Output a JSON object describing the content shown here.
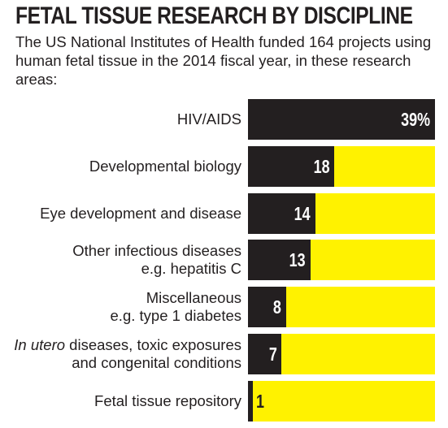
{
  "title": "FETAL TISSUE RESEARCH BY DISCIPLINE",
  "subtitle": "The US National Institutes of Health funded 164 projects using human fetal tissue in the 2014 fiscal year, in these research areas:",
  "colors": {
    "bar": "#231f20",
    "track": "#fff200",
    "text": "#231f20"
  },
  "chart_data": {
    "type": "bar",
    "orientation": "horizontal",
    "categories": [
      "HIV/AIDS",
      "Developmental biology",
      "Eye development and disease",
      "Other infectious diseases e.g. hepatitis C",
      "Miscellaneous e.g. type 1 diabetes",
      "In utero diseases, toxic exposures and congenital conditions",
      "Fetal tissue repository"
    ],
    "values": [
      39,
      18,
      14,
      13,
      8,
      7,
      1
    ],
    "value_labels": [
      "39%",
      "18",
      "14",
      "13",
      "8",
      "7",
      "1"
    ],
    "unit": "%",
    "xlim": [
      0,
      39
    ],
    "grid": false
  },
  "rows": [
    {
      "line1_em": "",
      "line1": "HIV/AIDS",
      "line2": ""
    },
    {
      "line1_em": "",
      "line1": "Developmental biology",
      "line2": ""
    },
    {
      "line1_em": "",
      "line1": "Eye development and disease",
      "line2": ""
    },
    {
      "line1_em": "",
      "line1": "Other infectious diseases",
      "line2": "e.g. hepatitis C"
    },
    {
      "line1_em": "",
      "line1": "Miscellaneous",
      "line2": "e.g. type 1 diabetes"
    },
    {
      "line1_em": "In utero",
      "line1": " diseases, toxic exposures",
      "line2": "and congenital conditions"
    },
    {
      "line1_em": "",
      "line1": "Fetal tissue repository",
      "line2": ""
    }
  ]
}
